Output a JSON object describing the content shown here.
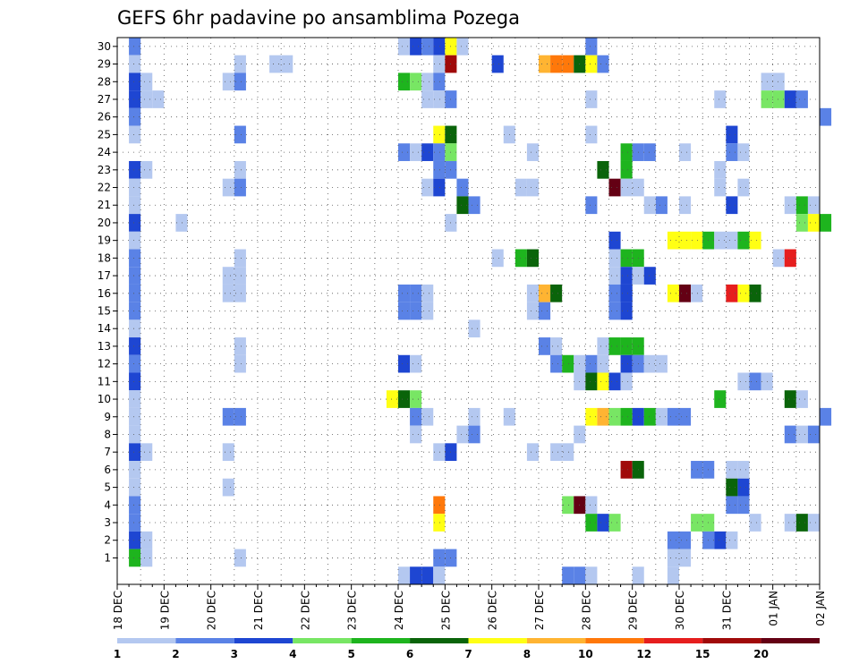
{
  "chart_data": {
    "type": "heatmap",
    "title": "GEFS 6hr padavine po ansamblima Pozega",
    "xlabel": "",
    "ylabel": "",
    "x_tick_labels": [
      "18 DEC",
      "19 DEC",
      "20 DEC",
      "21 DEC",
      "22 DEC",
      "23 DEC",
      "24 DEC",
      "25 DEC",
      "26 DEC",
      "27 DEC",
      "28 DEC",
      "29 DEC",
      "30 DEC",
      "31 DEC",
      "01 JAN",
      "02 JAN"
    ],
    "x_range": [
      "18 DEC 00Z",
      "02 JAN 00Z"
    ],
    "time_step_hours": 6,
    "y_tick_labels": [
      "1",
      "2",
      "3",
      "4",
      "5",
      "6",
      "7",
      "8",
      "9",
      "10",
      "11",
      "12",
      "13",
      "14",
      "15",
      "16",
      "17",
      "18",
      "19",
      "20",
      "21",
      "22",
      "23",
      "24",
      "25",
      "26",
      "27",
      "28",
      "29",
      "30"
    ],
    "y_range": [
      0,
      30
    ],
    "grid": true,
    "legend": {
      "placement": "bottom",
      "labels": [
        "1",
        "2",
        "3",
        "4",
        "5",
        "6",
        "7",
        "8",
        "10",
        "12",
        "15",
        "20"
      ],
      "colors": [
        "#b4c8f0",
        "#5a82e6",
        "#1e46d2",
        "#78e664",
        "#1eb41e",
        "#0a640a",
        "#ffff14",
        "#ffb432",
        "#ff780a",
        "#e61e1e",
        "#a00a0a",
        "#640014"
      ]
    },
    "cells": [
      {
        "member": 30,
        "times": [
          "18 DEC 06Z",
          "24 DEC 00Z",
          "24 DEC 06Z",
          "24 DEC 12Z",
          "24 DEC 18Z",
          "25 DEC 00Z",
          "25 DEC 06Z",
          "28 DEC 00Z"
        ],
        "levels": [
          2,
          1,
          3,
          2,
          3,
          7,
          1,
          2
        ]
      },
      {
        "member": 29,
        "times": [
          "18 DEC 06Z",
          "20 DEC 12Z",
          "21 DEC 06Z",
          "21 DEC 12Z",
          "24 DEC 18Z",
          "25 DEC 00Z",
          "26 DEC 00Z",
          "27 DEC 00Z",
          "27 DEC 06Z",
          "27 DEC 12Z",
          "27 DEC 18Z",
          "28 DEC 00Z",
          "28 DEC 06Z"
        ],
        "levels": [
          1,
          1,
          1,
          1,
          1,
          11,
          3,
          8,
          9,
          9,
          6,
          7,
          2
        ]
      },
      {
        "member": 28,
        "times": [
          "18 DEC 06Z",
          "18 DEC 12Z",
          "20 DEC 06Z",
          "20 DEC 12Z",
          "24 DEC 00Z",
          "24 DEC 06Z",
          "24 DEC 12Z",
          "24 DEC 18Z",
          "31 DEC 18Z",
          "01 JAN 00Z"
        ],
        "levels": [
          3,
          1,
          1,
          2,
          5,
          4,
          1,
          2,
          1,
          1
        ]
      },
      {
        "member": 27,
        "times": [
          "18 DEC 06Z",
          "18 DEC 12Z",
          "18 DEC 18Z",
          "24 DEC 12Z",
          "24 DEC 18Z",
          "25 DEC 00Z",
          "28 DEC 00Z",
          "30 DEC 18Z",
          "31 DEC 18Z",
          "01 JAN 00Z",
          "01 JAN 06Z",
          "01 JAN 12Z"
        ],
        "levels": [
          3,
          1,
          1,
          1,
          1,
          2,
          1,
          1,
          4,
          4,
          3,
          2
        ]
      },
      {
        "member": 26,
        "times": [
          "18 DEC 06Z",
          "02 JAN 00Z"
        ],
        "levels": [
          2,
          2
        ]
      },
      {
        "member": 25,
        "times": [
          "18 DEC 06Z",
          "20 DEC 12Z",
          "24 DEC 18Z",
          "25 DEC 00Z",
          "26 DEC 06Z",
          "28 DEC 00Z",
          "31 DEC 00Z"
        ],
        "levels": [
          1,
          2,
          7,
          6,
          1,
          1,
          3
        ]
      },
      {
        "member": 24,
        "times": [
          "24 DEC 00Z",
          "24 DEC 06Z",
          "24 DEC 12Z",
          "24 DEC 18Z",
          "25 DEC 00Z",
          "26 DEC 18Z",
          "28 DEC 18Z",
          "29 DEC 00Z",
          "29 DEC 06Z",
          "30 DEC 00Z",
          "31 DEC 00Z",
          "31 DEC 06Z"
        ],
        "levels": [
          2,
          1,
          3,
          2,
          4,
          1,
          5,
          2,
          2,
          1,
          2,
          1
        ]
      },
      {
        "member": 23,
        "times": [
          "18 DEC 06Z",
          "18 DEC 12Z",
          "20 DEC 12Z",
          "24 DEC 18Z",
          "25 DEC 00Z",
          "28 DEC 06Z",
          "28 DEC 18Z",
          "30 DEC 18Z"
        ],
        "levels": [
          3,
          1,
          1,
          2,
          2,
          6,
          5,
          1
        ]
      },
      {
        "member": 22,
        "times": [
          "18 DEC 06Z",
          "20 DEC 06Z",
          "20 DEC 12Z",
          "24 DEC 12Z",
          "24 DEC 18Z",
          "25 DEC 06Z",
          "26 DEC 12Z",
          "26 DEC 18Z",
          "28 DEC 12Z",
          "28 DEC 18Z",
          "29 DEC 00Z",
          "30 DEC 18Z",
          "31 DEC 06Z"
        ],
        "levels": [
          1,
          1,
          2,
          1,
          3,
          2,
          1,
          1,
          12,
          1,
          1,
          1,
          1
        ]
      },
      {
        "member": 21,
        "times": [
          "18 DEC 06Z",
          "25 DEC 06Z",
          "25 DEC 12Z",
          "28 DEC 00Z",
          "29 DEC 06Z",
          "29 DEC 12Z",
          "30 DEC 00Z",
          "31 DEC 00Z",
          "01 JAN 06Z",
          "01 JAN 12Z",
          "01 JAN 18Z"
        ],
        "levels": [
          1,
          6,
          2,
          2,
          1,
          2,
          1,
          3,
          1,
          5,
          1
        ]
      },
      {
        "member": 20,
        "times": [
          "18 DEC 06Z",
          "19 DEC 06Z",
          "25 DEC 00Z",
          "01 JAN 12Z",
          "01 JAN 18Z",
          "02 JAN 00Z"
        ],
        "levels": [
          3,
          1,
          1,
          4,
          7,
          5
        ]
      },
      {
        "member": 19,
        "times": [
          "18 DEC 06Z",
          "28 DEC 12Z",
          "29 DEC 18Z",
          "30 DEC 00Z",
          "30 DEC 06Z",
          "30 DEC 12Z",
          "30 DEC 18Z",
          "31 DEC 00Z",
          "31 DEC 06Z",
          "31 DEC 12Z"
        ],
        "levels": [
          1,
          3,
          7,
          7,
          7,
          5,
          1,
          1,
          5,
          7
        ]
      },
      {
        "member": 18,
        "times": [
          "18 DEC 06Z",
          "20 DEC 12Z",
          "26 DEC 00Z",
          "26 DEC 12Z",
          "26 DEC 18Z",
          "28 DEC 12Z",
          "28 DEC 18Z",
          "29 DEC 00Z",
          "01 JAN 00Z",
          "01 JAN 06Z"
        ],
        "levels": [
          2,
          1,
          1,
          5,
          6,
          1,
          5,
          5,
          1,
          10
        ]
      },
      {
        "member": 17,
        "times": [
          "18 DEC 06Z",
          "20 DEC 06Z",
          "20 DEC 12Z",
          "28 DEC 12Z",
          "28 DEC 18Z",
          "29 DEC 00Z",
          "29 DEC 06Z"
        ],
        "levels": [
          2,
          1,
          1,
          1,
          3,
          1,
          3
        ]
      },
      {
        "member": 16,
        "times": [
          "18 DEC 06Z",
          "20 DEC 06Z",
          "20 DEC 12Z",
          "28 DEC 18Z",
          "29 DEC 18Z",
          "30 DEC 00Z",
          "30 DEC 06Z"
        ],
        "levels": [
          2,
          1,
          1,
          3,
          7,
          12,
          1
        ]
      },
      {
        "member": 16,
        "times": [
          "24 DEC 00Z",
          "24 DEC 06Z",
          "24 DEC 12Z",
          "26 DEC 18Z",
          "27 DEC 00Z",
          "27 DEC 06Z",
          "28 DEC 12Z",
          "28 DEC 18Z",
          "31 DEC 00Z",
          "31 DEC 06Z",
          "31 DEC 12Z"
        ],
        "levels": [
          2,
          2,
          1,
          1,
          8,
          6,
          2,
          3,
          10,
          7,
          6
        ]
      },
      {
        "member": 15,
        "times": [
          "18 DEC 06Z",
          "24 DEC 00Z",
          "24 DEC 06Z",
          "24 DEC 12Z",
          "26 DEC 18Z",
          "27 DEC 00Z",
          "28 DEC 12Z",
          "28 DEC 18Z"
        ],
        "levels": [
          2,
          2,
          2,
          1,
          1,
          2,
          2,
          3
        ]
      },
      {
        "member": 14,
        "times": [
          "18 DEC 06Z",
          "25 DEC 12Z"
        ],
        "levels": [
          1,
          1
        ]
      },
      {
        "member": 13,
        "times": [
          "18 DEC 06Z",
          "20 DEC 12Z",
          "27 DEC 00Z",
          "27 DEC 06Z",
          "28 DEC 06Z",
          "28 DEC 12Z",
          "28 DEC 18Z",
          "29 DEC 00Z"
        ],
        "levels": [
          3,
          1,
          2,
          1,
          1,
          5,
          5,
          5
        ]
      },
      {
        "member": 12,
        "times": [
          "18 DEC 06Z",
          "20 DEC 12Z",
          "24 DEC 00Z",
          "24 DEC 06Z",
          "27 DEC 06Z",
          "27 DEC 12Z",
          "27 DEC 18Z",
          "28 DEC 00Z",
          "28 DEC 06Z",
          "28 DEC 18Z",
          "29 DEC 00Z",
          "29 DEC 06Z",
          "29 DEC 12Z"
        ],
        "levels": [
          2,
          1,
          3,
          1,
          2,
          5,
          1,
          2,
          1,
          3,
          2,
          1,
          1
        ]
      },
      {
        "member": 11,
        "times": [
          "18 DEC 06Z",
          "27 DEC 18Z",
          "28 DEC 00Z",
          "28 DEC 06Z",
          "28 DEC 12Z",
          "28 DEC 18Z",
          "31 DEC 06Z",
          "31 DEC 12Z",
          "31 DEC 18Z"
        ],
        "levels": [
          3,
          1,
          6,
          7,
          3,
          1,
          1,
          2,
          1
        ]
      },
      {
        "member": 10,
        "times": [
          "18 DEC 06Z",
          "23 DEC 18Z",
          "24 DEC 00Z",
          "24 DEC 06Z",
          "30 DEC 18Z",
          "01 JAN 06Z",
          "01 JAN 12Z"
        ],
        "levels": [
          1,
          7,
          6,
          4,
          5,
          6,
          1
        ]
      },
      {
        "member": 9,
        "times": [
          "18 DEC 06Z",
          "20 DEC 06Z",
          "20 DEC 12Z",
          "24 DEC 06Z",
          "24 DEC 12Z",
          "25 DEC 12Z",
          "26 DEC 06Z",
          "28 DEC 00Z",
          "28 DEC 06Z",
          "28 DEC 12Z",
          "28 DEC 18Z",
          "29 DEC 00Z",
          "29 DEC 06Z",
          "29 DEC 12Z",
          "29 DEC 18Z",
          "30 DEC 00Z",
          "02 JAN 00Z"
        ],
        "levels": [
          1,
          2,
          2,
          2,
          1,
          1,
          1,
          7,
          8,
          4,
          5,
          3,
          5,
          1,
          2,
          2,
          2
        ]
      },
      {
        "member": 8,
        "times": [
          "18 DEC 06Z",
          "24 DEC 06Z",
          "25 DEC 06Z",
          "25 DEC 12Z",
          "27 DEC 18Z",
          "01 JAN 06Z",
          "01 JAN 12Z",
          "01 JAN 18Z"
        ],
        "levels": [
          1,
          1,
          1,
          2,
          1,
          2,
          1,
          2
        ]
      },
      {
        "member": 7,
        "times": [
          "18 DEC 06Z",
          "18 DEC 12Z",
          "20 DEC 06Z",
          "24 DEC 18Z",
          "25 DEC 00Z",
          "26 DEC 18Z",
          "27 DEC 06Z",
          "27 DEC 12Z"
        ],
        "levels": [
          3,
          1,
          1,
          1,
          3,
          1,
          1,
          1
        ]
      },
      {
        "member": 6,
        "times": [
          "18 DEC 06Z",
          "28 DEC 18Z",
          "29 DEC 00Z",
          "30 DEC 06Z",
          "30 DEC 12Z",
          "31 DEC 00Z",
          "31 DEC 06Z"
        ],
        "levels": [
          1,
          11,
          6,
          2,
          2,
          1,
          1
        ]
      },
      {
        "member": 5,
        "times": [
          "18 DEC 06Z",
          "20 DEC 06Z",
          "31 DEC 00Z",
          "31 DEC 06Z"
        ],
        "levels": [
          1,
          1,
          6,
          3
        ]
      },
      {
        "member": 4,
        "times": [
          "18 DEC 06Z",
          "24 DEC 18Z",
          "27 DEC 12Z",
          "27 DEC 18Z",
          "28 DEC 00Z",
          "31 DEC 00Z",
          "31 DEC 06Z"
        ],
        "levels": [
          2,
          9,
          4,
          12,
          1,
          2,
          2
        ]
      },
      {
        "member": 3,
        "times": [
          "18 DEC 06Z",
          "24 DEC 18Z",
          "28 DEC 00Z",
          "28 DEC 06Z",
          "28 DEC 12Z",
          "30 DEC 06Z",
          "30 DEC 12Z",
          "31 DEC 12Z",
          "01 JAN 06Z",
          "01 JAN 12Z",
          "01 JAN 18Z"
        ],
        "levels": [
          2,
          7,
          5,
          3,
          4,
          4,
          4,
          1,
          1,
          6,
          1
        ]
      },
      {
        "member": 2,
        "times": [
          "18 DEC 06Z",
          "18 DEC 12Z",
          "29 DEC 18Z",
          "30 DEC 00Z",
          "30 DEC 12Z",
          "30 DEC 18Z",
          "31 DEC 00Z"
        ],
        "levels": [
          3,
          1,
          2,
          2,
          2,
          3,
          1
        ]
      },
      {
        "member": 1,
        "times": [
          "18 DEC 06Z",
          "18 DEC 12Z",
          "20 DEC 12Z",
          "24 DEC 18Z",
          "25 DEC 00Z",
          "29 DEC 18Z",
          "30 DEC 00Z"
        ],
        "levels": [
          5,
          1,
          1,
          2,
          2,
          1,
          1
        ]
      },
      {
        "member": 0,
        "times": [
          "24 DEC 00Z",
          "24 DEC 06Z",
          "24 DEC 12Z",
          "24 DEC 18Z",
          "27 DEC 12Z",
          "27 DEC 18Z",
          "28 DEC 00Z",
          "29 DEC 00Z",
          "29 DEC 18Z"
        ],
        "levels": [
          1,
          3,
          3,
          1,
          2,
          2,
          1,
          1,
          1
        ]
      }
    ]
  }
}
